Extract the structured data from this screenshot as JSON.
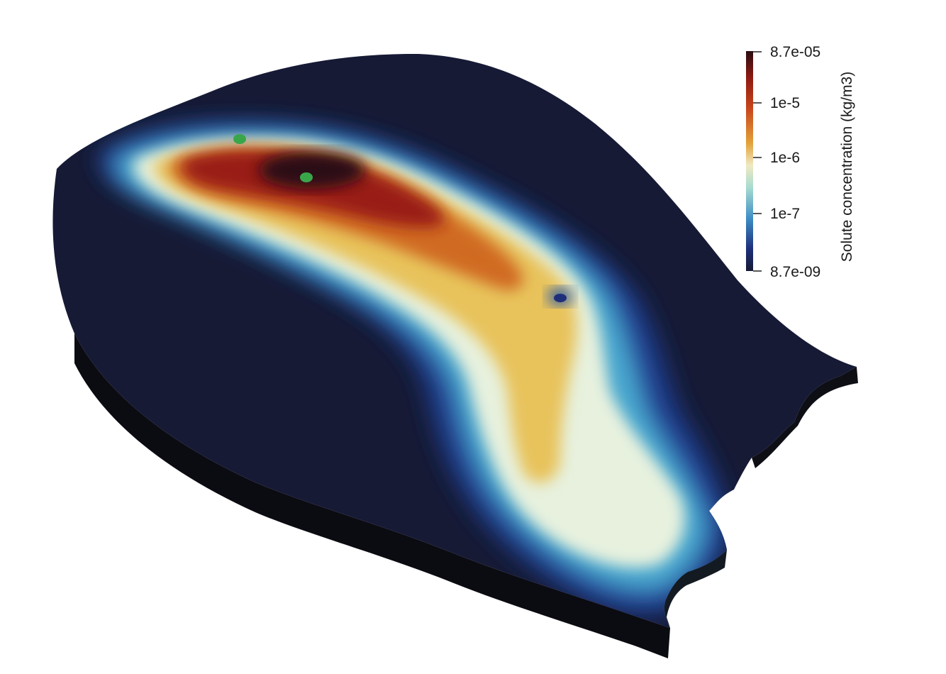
{
  "scene": {
    "name": "Solute concentration plume",
    "markers": 2,
    "marker_color": "#3aa64a",
    "background_color": "#161a35"
  },
  "colorbar": {
    "title": "Solute concentration (kg/m3)",
    "scale": "log",
    "range": [
      "8.7e-09",
      "8.7e-05"
    ],
    "ticks": [
      "8.7e-05",
      "1e-5",
      "1e-6",
      "1e-7",
      "8.7e-09"
    ],
    "colors": [
      "#2a0d12",
      "#8e1a12",
      "#c8451c",
      "#e3a33a",
      "#f0e9c2",
      "#a8dcd0",
      "#3f8fc6",
      "#1d2f7a",
      "#161a35"
    ]
  }
}
